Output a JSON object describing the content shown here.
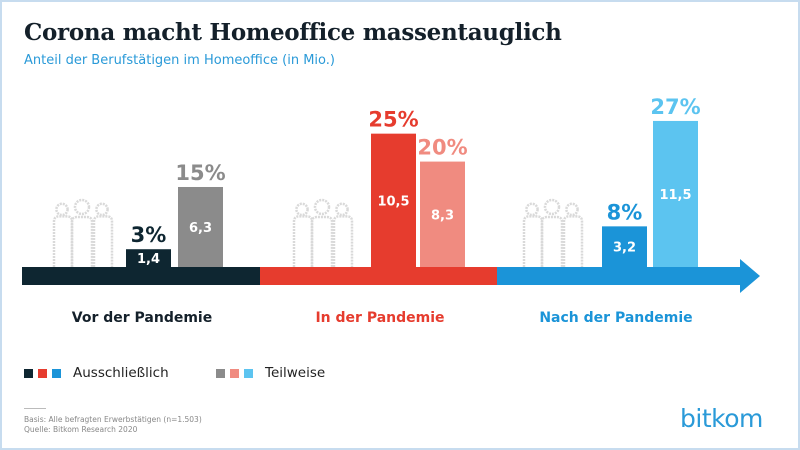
{
  "title": "Corona macht Homeoffice massentauglich",
  "subtitle": "Anteil der Berufstätigen im Homeoffice (in Mio.)",
  "chart_data": {
    "type": "bar",
    "title": "Corona macht Homeoffice massentauglich",
    "subtitle": "Anteil der Berufstätigen im Homeoffice (in Mio.)",
    "categories": [
      "Vor der Pandemie",
      "In der Pandemie",
      "Nach der Pandemie"
    ],
    "series": [
      {
        "name": "Ausschließlich",
        "values": [
          1.4,
          10.5,
          3.2
        ],
        "value_labels": [
          "1,4",
          "10,5",
          "3,2"
        ],
        "percent_labels": [
          "3%",
          "25%",
          "8%"
        ],
        "colors": [
          "#0e2631",
          "#e63c2e",
          "#1b94d8"
        ]
      },
      {
        "name": "Teilweise",
        "values": [
          6.3,
          8.3,
          11.5
        ],
        "value_labels": [
          "6,3",
          "8,3",
          "11,5"
        ],
        "percent_labels": [
          "15%",
          "20%",
          "27%"
        ],
        "colors": [
          "#8b8b8b",
          "#f08b80",
          "#5cc4f0"
        ]
      }
    ],
    "category_colors": [
      "#0e2631",
      "#e63c2e",
      "#1b94d8"
    ],
    "grid": false,
    "legend": "bottom-left"
  },
  "legend": {
    "exclusive": "Ausschließlich",
    "partial": "Teilweise"
  },
  "footer": {
    "basis": "Basis: Alle befragten Erwerbstätigen (n=1.503)",
    "source": "Quelle: Bitkom Research 2020"
  },
  "logo": "bitkom"
}
